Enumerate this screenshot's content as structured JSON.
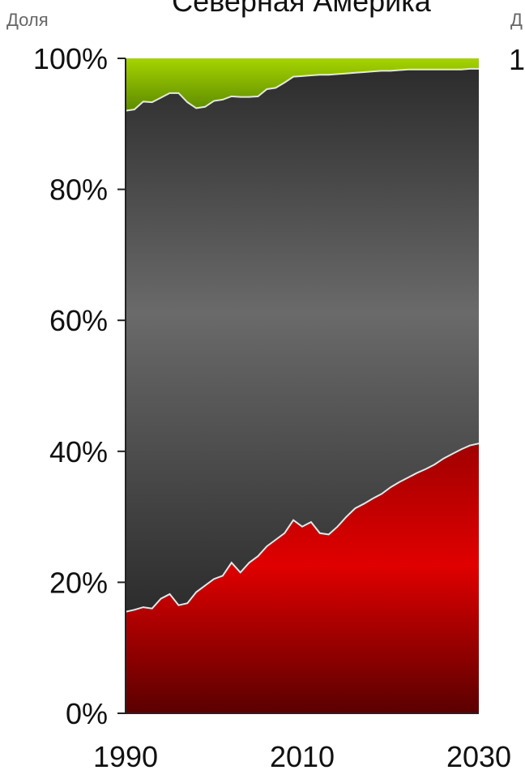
{
  "chart_data": {
    "type": "area",
    "stacked": true,
    "percent": true,
    "title": "Северная Америка",
    "ylabel": "Доля",
    "ylabel_right": "Д",
    "yticks_right_partial": "1",
    "xlim": [
      1990,
      2030
    ],
    "ylim": [
      0,
      100
    ],
    "xticks": [
      "1990",
      "2010",
      "2030"
    ],
    "yticks": [
      "0%",
      "20%",
      "40%",
      "60%",
      "80%",
      "100%"
    ],
    "grid": false,
    "x": [
      1990,
      1991,
      1992,
      1993,
      1994,
      1995,
      1996,
      1997,
      1998,
      1999,
      2000,
      2001,
      2002,
      2003,
      2004,
      2005,
      2006,
      2007,
      2008,
      2009,
      2010,
      2011,
      2012,
      2013,
      2014,
      2015,
      2016,
      2017,
      2018,
      2019,
      2020,
      2021,
      2022,
      2023,
      2024,
      2025,
      2026,
      2027,
      2028,
      2029,
      2030
    ],
    "series": [
      {
        "color": "#cc0000",
        "values": [
          15.5,
          15.8,
          16.2,
          16.0,
          17.5,
          18.2,
          16.5,
          16.8,
          18.5,
          19.5,
          20.5,
          21.0,
          23.0,
          21.5,
          23.0,
          24.0,
          25.5,
          26.5,
          27.5,
          29.5,
          28.5,
          29.2,
          27.5,
          27.3,
          28.5,
          30.0,
          31.3,
          32.0,
          32.8,
          33.5,
          34.5,
          35.3,
          36.0,
          36.7,
          37.3,
          38.0,
          38.9,
          39.6,
          40.3,
          40.9,
          41.2
        ]
      },
      {
        "color": "#555555",
        "values": [
          76.5,
          76.4,
          77.2,
          77.3,
          76.5,
          76.5,
          78.2,
          76.5,
          73.9,
          73.1,
          73.0,
          72.7,
          71.2,
          72.6,
          71.1,
          70.2,
          69.8,
          69.0,
          68.8,
          67.7,
          68.8,
          68.2,
          70.0,
          70.2,
          69.1,
          67.7,
          66.5,
          65.9,
          65.2,
          64.6,
          63.6,
          62.9,
          62.3,
          61.6,
          61.0,
          60.3,
          59.4,
          58.7,
          58.0,
          57.5,
          57.2
        ]
      },
      {
        "color": "#8bc400",
        "values": [
          8.0,
          7.8,
          6.6,
          6.7,
          6.0,
          5.3,
          5.3,
          6.7,
          7.6,
          7.4,
          6.5,
          6.3,
          5.8,
          5.9,
          5.9,
          5.8,
          4.7,
          4.5,
          3.7,
          2.8,
          2.7,
          2.6,
          2.5,
          2.5,
          2.4,
          2.3,
          2.2,
          2.1,
          2.0,
          1.9,
          1.9,
          1.8,
          1.7,
          1.7,
          1.7,
          1.7,
          1.7,
          1.7,
          1.7,
          1.6,
          1.6
        ]
      }
    ]
  }
}
